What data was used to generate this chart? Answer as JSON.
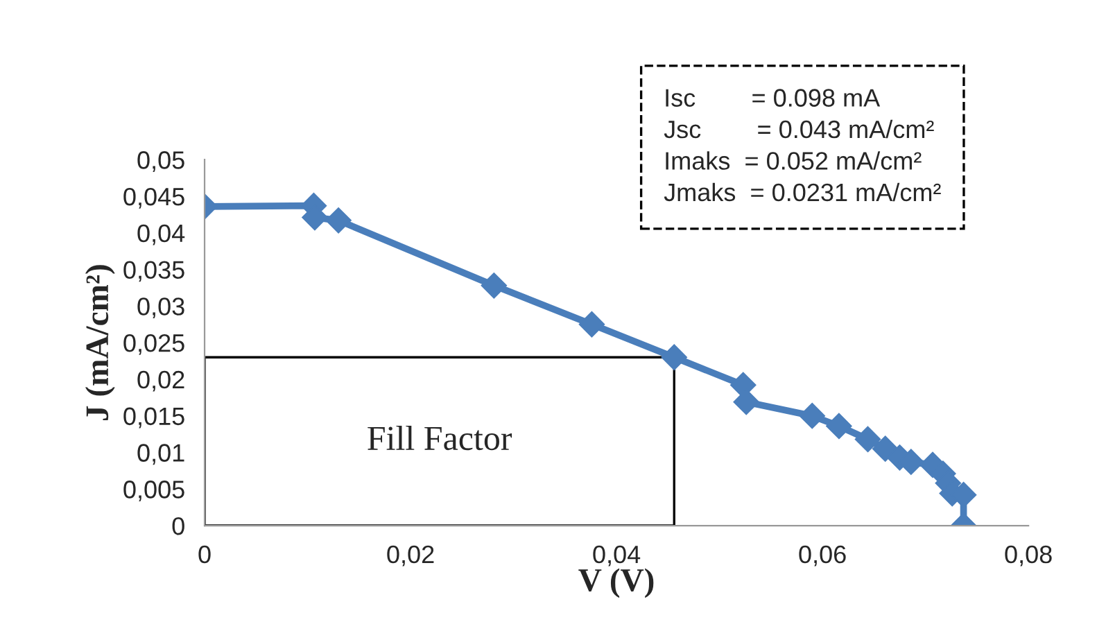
{
  "chart_data": {
    "type": "line",
    "xlabel": "V (V)",
    "ylabel": "J (mA/cm²)",
    "x": [
      0,
      0.0106,
      0.0107,
      0.013,
      0.0281,
      0.0376,
      0.0456,
      0.0523,
      0.0526,
      0.059,
      0.0616,
      0.0644,
      0.0661,
      0.0675,
      0.0686,
      0.0707,
      0.0717,
      0.0722,
      0.0726,
      0.0737,
      0.0737
    ],
    "series": [
      {
        "color": "#4a7ebb",
        "values": [
          0.0436,
          0.0437,
          0.0421,
          0.0417,
          0.0328,
          0.0275,
          0.023,
          0.0192,
          0.0169,
          0.015,
          0.0136,
          0.0118,
          0.0105,
          0.0093,
          0.0087,
          0.0083,
          0.0071,
          0.0058,
          0.0044,
          0.0042,
          0
        ]
      }
    ],
    "xlim": [
      0,
      0.08
    ],
    "ylim": [
      0,
      0.05
    ],
    "xticks": [
      0,
      {
        "value": 0.02,
        "label": "0,02"
      },
      {
        "value": 0.04,
        "label": "0,04"
      },
      {
        "value": 0.06,
        "label": "0,06"
      },
      {
        "value": 0.08,
        "label": "0,08"
      }
    ],
    "yticks": [
      0,
      {
        "value": 0.005,
        "label": "0,005"
      },
      {
        "value": 0.01,
        "label": "0,01"
      },
      {
        "value": 0.015,
        "label": "0,015"
      },
      {
        "value": 0.02,
        "label": "0,02"
      },
      {
        "value": 0.025,
        "label": "0,025"
      },
      {
        "value": 0.03,
        "label": "0,03"
      },
      {
        "value": 0.035,
        "label": "0,035"
      },
      {
        "value": 0.04,
        "label": "0,04"
      },
      {
        "value": 0.045,
        "label": "0,045"
      },
      {
        "value": 0.05,
        "label": "0,05"
      }
    ],
    "marker": "diamond",
    "line_style": "solid",
    "grid": false,
    "legend": false,
    "annotations": [
      "Fill Factor",
      "Isc        = 0.098 mA",
      "Jsc        = 0.043 mA/cm²",
      "Imaks  = 0.052 mA/cm²",
      "Jmaks  = 0.0231 mA/cm²"
    ]
  }
}
